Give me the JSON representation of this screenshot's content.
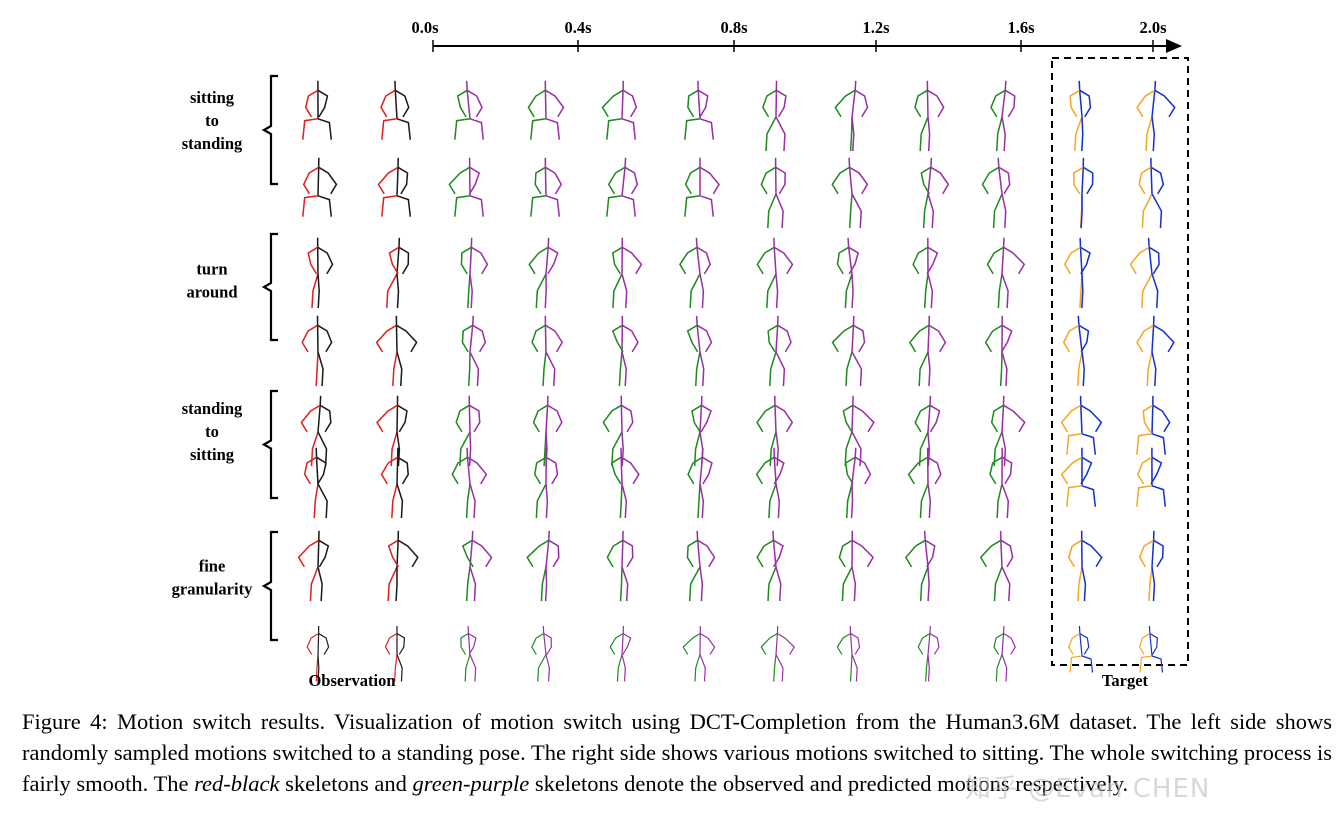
{
  "figure": {
    "time_ticks": [
      "0.0s",
      "0.4s",
      "0.8s",
      "1.2s",
      "1.6s",
      "2.0s"
    ],
    "groups": [
      {
        "label_lines": [
          "sitting",
          "to",
          "standing"
        ]
      },
      {
        "label_lines": [
          "turn",
          "around"
        ]
      },
      {
        "label_lines": [
          "standing",
          "to",
          "sitting"
        ]
      },
      {
        "label_lines": [
          "fine",
          "granularity"
        ]
      }
    ],
    "observation_label": "Observation",
    "target_label": "Target",
    "colors": {
      "observed_a": "#e02020",
      "observed_b": "#1a1a1a",
      "predicted_a": "#1f8a1f",
      "predicted_b": "#9a2fa5",
      "target_a": "#f5a623",
      "target_b": "#1530d0"
    }
  },
  "caption": {
    "prefix": "Figure 4: Motion switch results. Visualization of motion switch using DCT-Completion from the Human3.6M dataset. The left side shows randomly sampled motions switched to a standing pose. The right side shows various motions switched to sitting. The whole switching process is fairly smooth. The ",
    "em1": "red-black",
    "middle": " skeletons and ",
    "em2": "green-purple",
    "suffix": " skeletons denote the observed and predicted motions respectively."
  },
  "watermark": "知乎 @Evan CHEN"
}
